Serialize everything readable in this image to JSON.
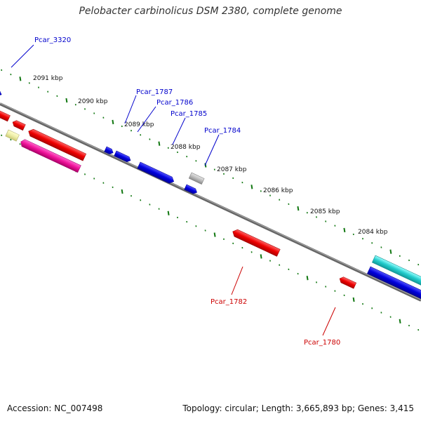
{
  "title": "Pelobacter carbinolicus DSM 2380, complete genome",
  "footer": {
    "accession": "Accession: NC_007498",
    "summary": "Topology: circular; Length: 3,665,893 bp; Genes: 3,415"
  },
  "colors": {
    "forward": "#0000dd",
    "reverse": "#ee0000",
    "pink": "#ee1199",
    "teal": "#22cccc",
    "grey": "#bbbbbb",
    "yellow": "#eeeeaa",
    "tick": "#117711",
    "backbone": "#777777"
  },
  "ticks": [
    "2091 kbp",
    "2090 kbp",
    "2089 kbp",
    "2088 kbp",
    "2087 kbp",
    "2086 kbp",
    "2085 kbp",
    "2084 kbp"
  ],
  "labels": {
    "pcar_3320": "Pcar_3320",
    "pcar_1787": "Pcar_1787",
    "pcar_1786": "Pcar_1786",
    "pcar_1785": "Pcar_1785",
    "pcar_1784": "Pcar_1784",
    "pcar_1782": "Pcar_1782",
    "pcar_1780": "Pcar_1780"
  }
}
